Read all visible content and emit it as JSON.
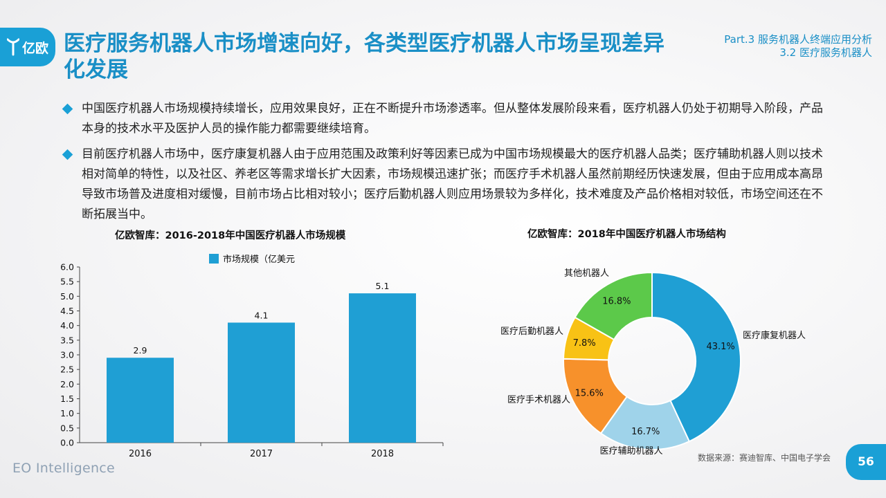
{
  "header": {
    "logo_text": "亿欧",
    "title": "医疗服务机器人市场增速向好，各类型医疗机器人市场呈现差异化发展",
    "section_line1": "Part.3 服务机器人终端应用分析",
    "section_line2": "3.2 医疗服务机器人"
  },
  "bullets": [
    "中国医疗机器人市场规模持续增长，应用效果良好，正在不断提升市场渗透率。但从整体发展阶段来看，医疗机器人仍处于初期导入阶段，产品本身的技术水平及医护人员的操作能力都需要继续培育。",
    "目前医疗机器人市场中，医疗康复机器人由于应用范围及政策利好等因素已成为中国市场规模最大的医疗机器人品类；医疗辅助机器人则以技术相对简单的特性，以及社区、养老区等需求增长扩大因素，市场规模迅速扩张；而医疗手术机器人虽然前期经历快速发展，但由于应用成本高昂导致市场普及进度相对缓慢，目前市场占比相对较小；医疗后勤机器人则应用场景较为多样化，技术难度及产品价格相对较低，市场空间还在不断拓展当中。"
  ],
  "chart_data": [
    {
      "type": "bar",
      "title": "亿欧智库：2016-2018年中国医疗机器人市场规模",
      "categories": [
        "2016",
        "2017",
        "2018"
      ],
      "series": [
        {
          "name": "市场规模（亿美元",
          "values": [
            2.9,
            4.1,
            5.1
          ],
          "color": "#1f9fd4"
        }
      ],
      "data_labels": [
        "2.9",
        "4.1",
        "5.1"
      ],
      "ylim": [
        0,
        6
      ],
      "yticks": [
        "0.0",
        "0.5",
        "1.0",
        "1.5",
        "2.0",
        "2.5",
        "3.0",
        "3.5",
        "4.0",
        "4.5",
        "5.0",
        "5.5",
        "6.0"
      ],
      "legend": "top-center"
    },
    {
      "type": "pie",
      "title": "亿欧智库：2018年中国医疗机器人市场结构",
      "slices": [
        {
          "label": "医疗康复机器人",
          "value": 43.1,
          "pct": "43.1%",
          "color": "#1f9fd4"
        },
        {
          "label": "医疗辅助机器人",
          "value": 16.7,
          "pct": "16.7%",
          "color": "#9fd3ea"
        },
        {
          "label": "医疗手术机器人",
          "value": 15.6,
          "pct": "15.6%",
          "color": "#f7912b"
        },
        {
          "label": "医疗后勤机器人",
          "value": 7.8,
          "pct": "7.8%",
          "color": "#f8c215"
        },
        {
          "label": "其他机器人",
          "value": 16.8,
          "pct": "16.8%",
          "color": "#5cc94a"
        }
      ]
    }
  ],
  "footer": {
    "source": "数据来源：赛迪智库、中国电子学会",
    "brand": "EO Intelligence",
    "page_number": "56"
  }
}
